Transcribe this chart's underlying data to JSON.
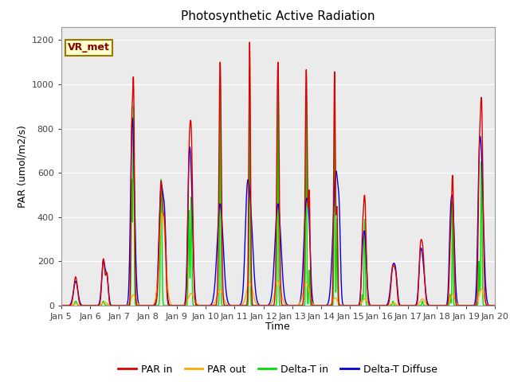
{
  "title": "Photosynthetic Active Radiation",
  "ylabel": "PAR (umol/m2/s)",
  "xlabel": "Time",
  "annotation": "VR_met",
  "ylim": [
    0,
    1260
  ],
  "yticks": [
    0,
    200,
    400,
    600,
    800,
    1000,
    1200
  ],
  "plot_bg": "#ebebeb",
  "fig_bg": "#ffffff",
  "colors": {
    "PAR_in": "#dd0000",
    "PAR_out": "#ffaa00",
    "Delta_T_in": "#00dd00",
    "Delta_T_Diffuse": "#0000dd"
  },
  "line_width": 1.0,
  "days": [
    "Jan 5",
    "Jan 6",
    "Jan 7",
    "Jan 8",
    "Jan 9",
    "Jan 10",
    "Jan 11",
    "Jan 12",
    "Jan 13",
    "Jan 14",
    "Jan 15",
    "Jan 16",
    "Jan 17",
    "Jan 18",
    "Jan 19",
    "Jan 20"
  ],
  "n_points": 1441
}
